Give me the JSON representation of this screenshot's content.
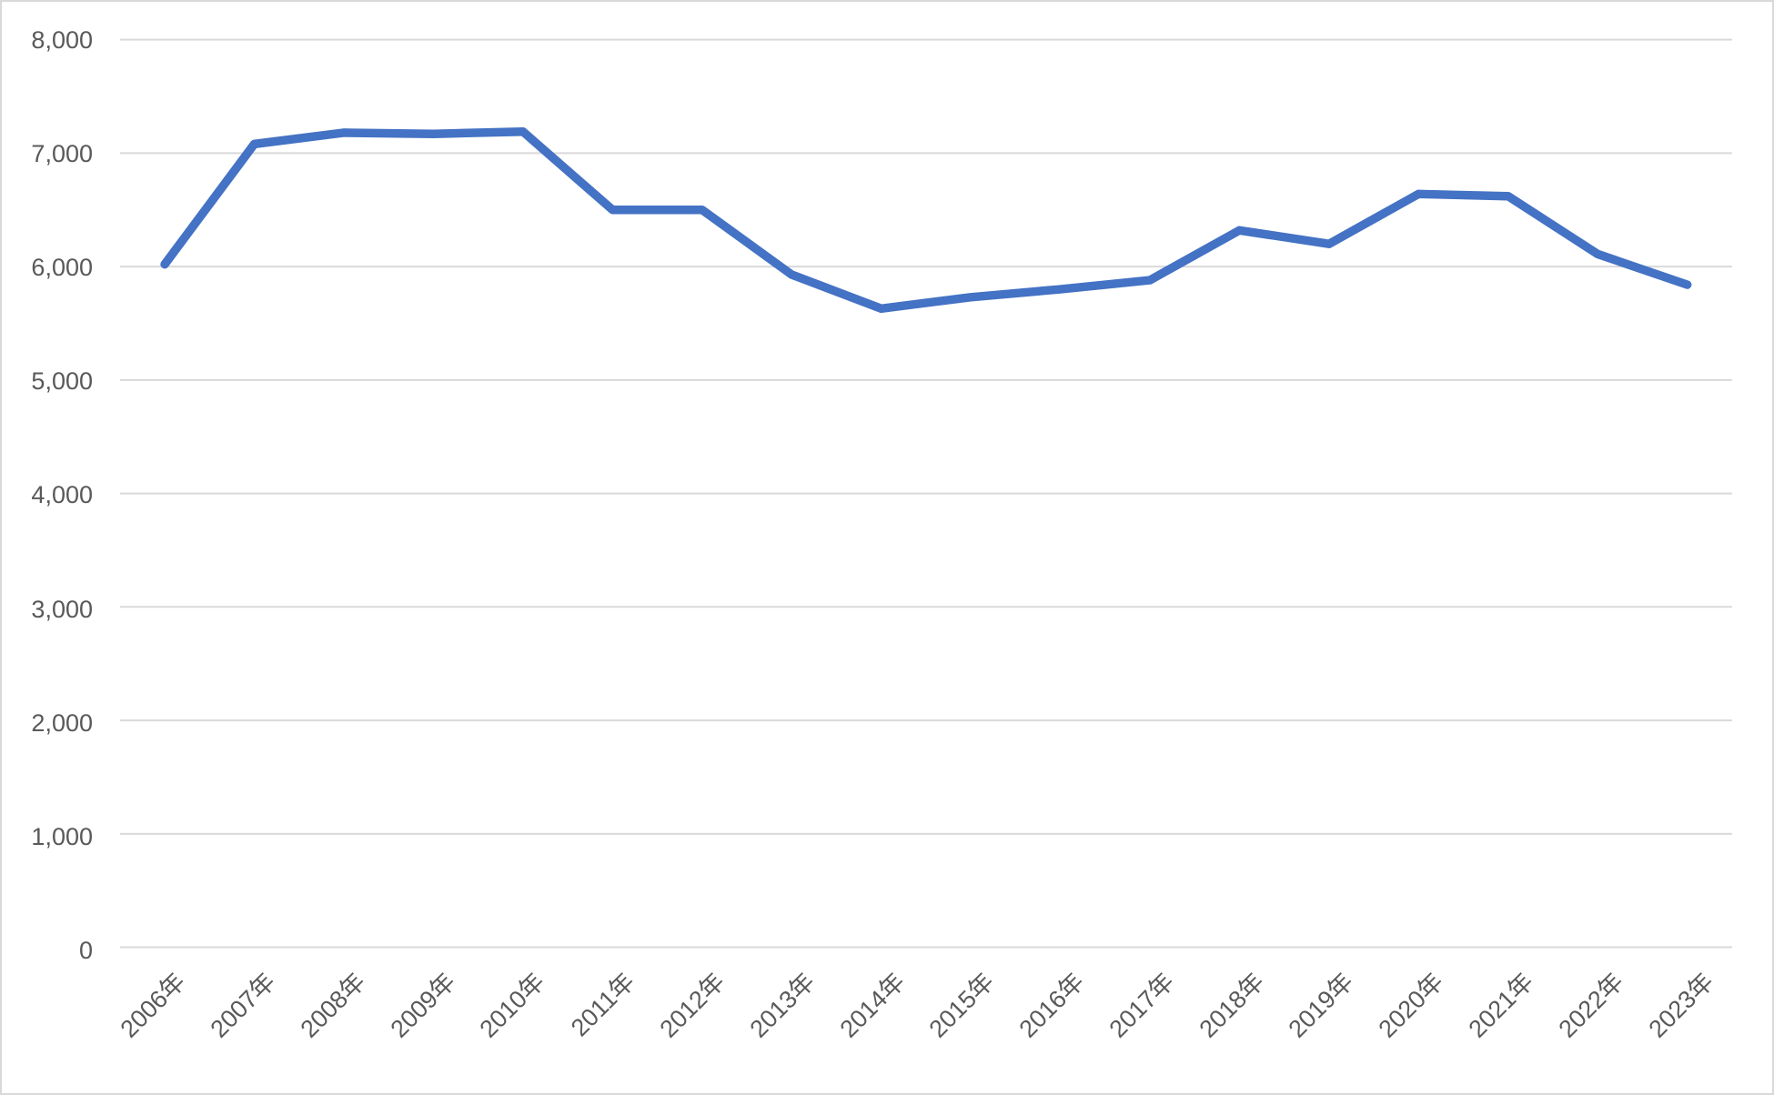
{
  "chart_data": {
    "type": "line",
    "title": "",
    "xlabel": "",
    "ylabel": "",
    "categories": [
      "2006年",
      "2007年",
      "2008年",
      "2009年",
      "2010年",
      "2011年",
      "2012年",
      "2013年",
      "2014年",
      "2015年",
      "2016年",
      "2017年",
      "2018年",
      "2019年",
      "2020年",
      "2021年",
      "2022年",
      "2023年"
    ],
    "values": [
      6020,
      7080,
      7180,
      7170,
      7190,
      6500,
      6500,
      5930,
      5630,
      5730,
      5800,
      5880,
      6320,
      6200,
      6640,
      6620,
      6110,
      5840
    ],
    "ylim": [
      0,
      8000
    ],
    "ytick_step": 1000,
    "ytick_labels": [
      "0",
      "1,000",
      "2,000",
      "3,000",
      "4,000",
      "5,000",
      "6,000",
      "7,000",
      "8,000"
    ],
    "grid": true,
    "legend": false,
    "marker": "none",
    "line_color": "#4472C4",
    "gridline_color": "#d9d9d9",
    "border_color": "#d9d9d9",
    "tick_label_color": "#595959",
    "background_color": "#ffffff"
  }
}
